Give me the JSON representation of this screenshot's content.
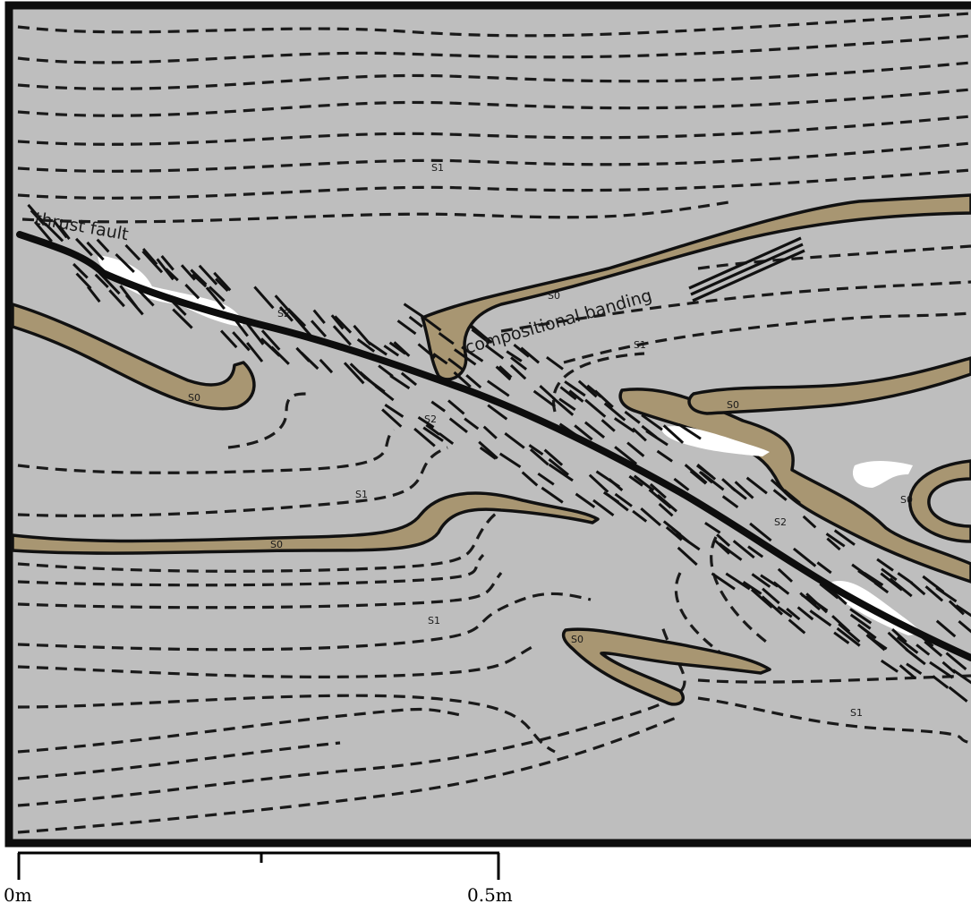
{
  "labels": {
    "thrust_fault": "thrust fault",
    "compositional_banding": "compositional banding",
    "s0": "S0",
    "s1": "S1",
    "s2": "S2"
  },
  "scale_bar": {
    "start_label": "0m",
    "end_label": "0.5m"
  },
  "colors": {
    "background": "#bebebe",
    "bedding_layer": "#a89672",
    "quartz_vein": "#ffffff",
    "lines": "#111111"
  }
}
